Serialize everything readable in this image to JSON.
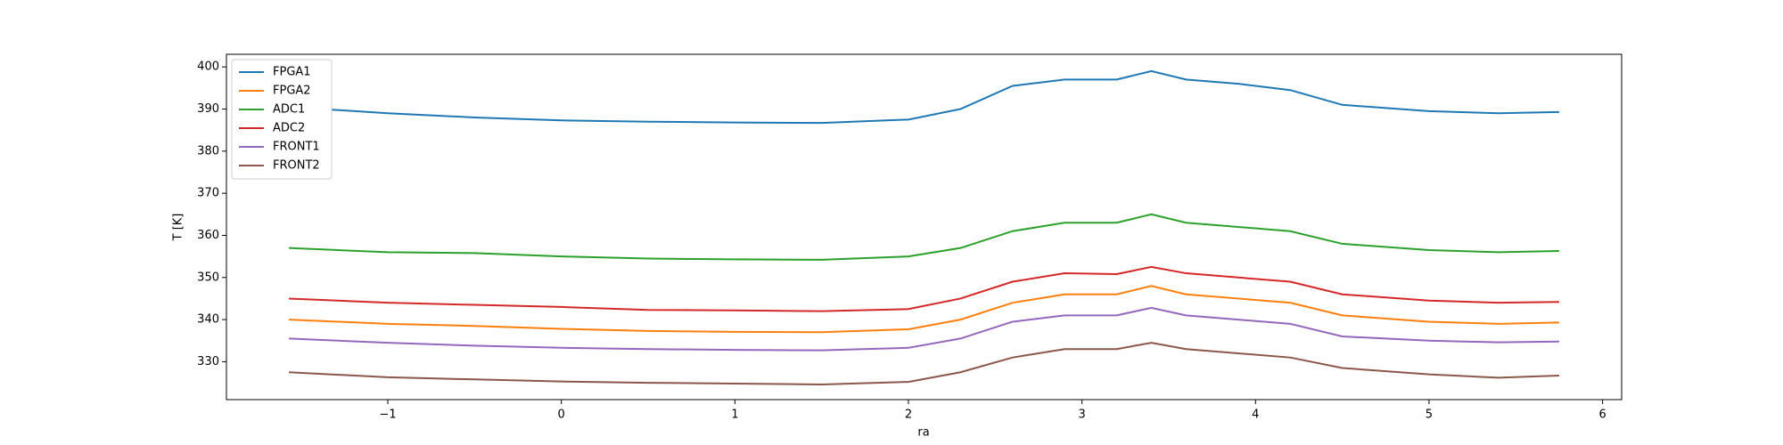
{
  "chart_data": {
    "type": "line",
    "x_label": "ra",
    "y_label": "T [K]",
    "x": [
      -1.57,
      -1,
      -0.5,
      0,
      0.5,
      1,
      1.5,
      2,
      2.3,
      2.6,
      2.9,
      3.2,
      3.4,
      3.6,
      3.9,
      4.2,
      4.5,
      5,
      5.4,
      5.75
    ],
    "series": [
      {
        "name": "FPGA1",
        "color": "#1f77b4",
        "values": [
          390.5,
          389,
          388,
          387.3,
          387,
          386.8,
          386.7,
          387.5,
          390,
          395.5,
          397,
          397,
          399,
          397,
          396,
          394.5,
          391,
          389.5,
          389,
          389.3
        ]
      },
      {
        "name": "FPGA2",
        "color": "#ff7f0e",
        "values": [
          340,
          339,
          338.5,
          337.8,
          337.3,
          337.1,
          337,
          337.7,
          340,
          344,
          346,
          346,
          348,
          346,
          345,
          344,
          341,
          339.5,
          339,
          339.3
        ]
      },
      {
        "name": "ADC1",
        "color": "#2ca02c",
        "values": [
          357,
          356,
          355.8,
          355,
          354.5,
          354.3,
          354.2,
          355,
          357,
          361,
          363,
          363,
          365,
          363,
          362,
          361,
          358,
          356.5,
          356,
          356.3
        ]
      },
      {
        "name": "ADC2",
        "color": "#d62728",
        "values": [
          345,
          344,
          343.5,
          343,
          342.3,
          342.2,
          342,
          342.5,
          345,
          349,
          351,
          350.8,
          352.5,
          351,
          350,
          349,
          346,
          344.5,
          344,
          344.2
        ]
      },
      {
        "name": "FRONT1",
        "color": "#9467bd",
        "values": [
          335.5,
          334.5,
          333.8,
          333.3,
          333,
          332.8,
          332.7,
          333.3,
          335.5,
          339.5,
          341,
          341,
          342.8,
          341,
          340,
          339,
          336,
          335,
          334.6,
          334.8
        ]
      },
      {
        "name": "FRONT2",
        "color": "#8c564b",
        "values": [
          327.5,
          326.3,
          325.8,
          325.3,
          325,
          324.8,
          324.6,
          325.2,
          327.5,
          331,
          333,
          333,
          334.5,
          333,
          332,
          331,
          328.5,
          327,
          326.2,
          326.7
        ]
      }
    ],
    "xlim": [
      -1.93,
      6.11
    ],
    "xticks": [
      {
        "value": -1,
        "label": "−1"
      },
      0,
      1,
      2,
      3,
      4,
      5,
      6
    ],
    "ylim": [
      321,
      403
    ],
    "yticks": [
      330,
      340,
      350,
      360,
      370,
      380,
      390,
      400
    ],
    "legend": "upper-left",
    "grid": false
  }
}
